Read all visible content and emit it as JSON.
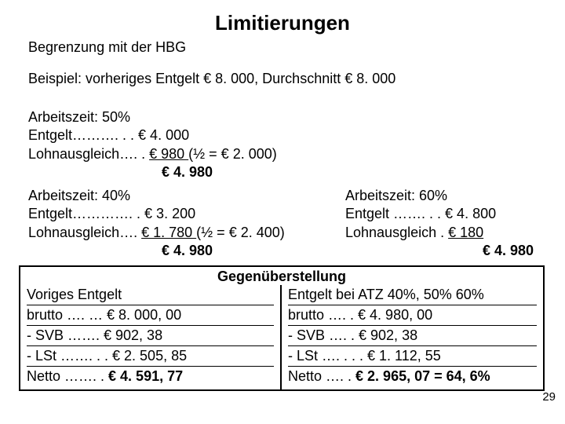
{
  "title": "Limitierungen",
  "subtitle": "Begrenzung mit der HBG",
  "example": "Beispiel: vorheriges Entgelt € 8. 000, Durchschnitt € 8. 000",
  "b50": {
    "l1": "Arbeitszeit: 50%",
    "l2": "Entgelt………. . . € 4. 000",
    "l3a": "Lohnausgleich…. . ",
    "l3b": "€    980 ",
    "l3c": "(½ = € 2. 000)",
    "l4": "€ 4. 980"
  },
  "b40": {
    "l1": "Arbeitszeit: 40%",
    "l2": "Entgelt…………. . € 3. 200",
    "l3a": "Lohnausgleich…. ",
    "l3b": "€ 1. 780 ",
    "l3c": "(½ = € 2. 400)",
    "l4": "€ 4. 980"
  },
  "b60": {
    "l1": "Arbeitszeit: 60%",
    "l2": "Entgelt  ……. . . € 4. 800",
    "l3a": "Lohnausgleich . ",
    "l3b": "€    180",
    "l4": "€ 4. 980"
  },
  "compare": {
    "heading": "Gegenüberstellung",
    "left": {
      "h": "Voriges Entgelt",
      "r1": "brutto …. … € 8. 000, 00",
      "r2": "- SVB ……. €    902, 38",
      "r3": "- LSt ……. . . € 2. 505, 85",
      "r4a": "Netto ……. . ",
      "r4b": "€ 4. 591, 77"
    },
    "right": {
      "h": "Entgelt bei ATZ 40%, 50% 60%",
      "r1": "brutto …. . € 4. 980, 00",
      "r2": "- SVB …. . €    902, 38",
      "r3": "- LSt …. . . . € 1. 112, 55",
      "r4a": "Netto …. . ",
      "r4b": "€ 2. 965, 07 = 64, 6%"
    }
  },
  "page": "29"
}
